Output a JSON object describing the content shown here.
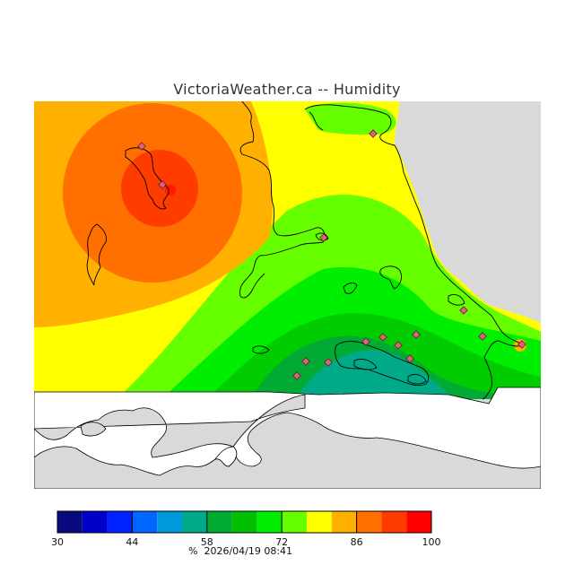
{
  "title": "VictoriaWeather.ca -- Humidity",
  "legend": {
    "unit": "%",
    "timestamp": "2026/04/19 08:41",
    "min": 30,
    "max": 100,
    "step": 5,
    "tick_labels": [
      "30",
      "44",
      "58",
      "72",
      "86",
      "100"
    ],
    "tick_values": [
      30,
      44,
      58,
      72,
      86,
      100
    ],
    "colors": [
      "#0a0a80",
      "#0000c8",
      "#0022ff",
      "#0066ff",
      "#0099dd",
      "#00aa88",
      "#00aa33",
      "#00c000",
      "#00ee00",
      "#66ff00",
      "#ffff00",
      "#ffb000",
      "#ff7000",
      "#ff3c00",
      "#ff0000"
    ]
  },
  "map": {
    "background_color": "#d9d9d9",
    "water_color": "#ffffff",
    "station_color": "#e0627a"
  }
}
